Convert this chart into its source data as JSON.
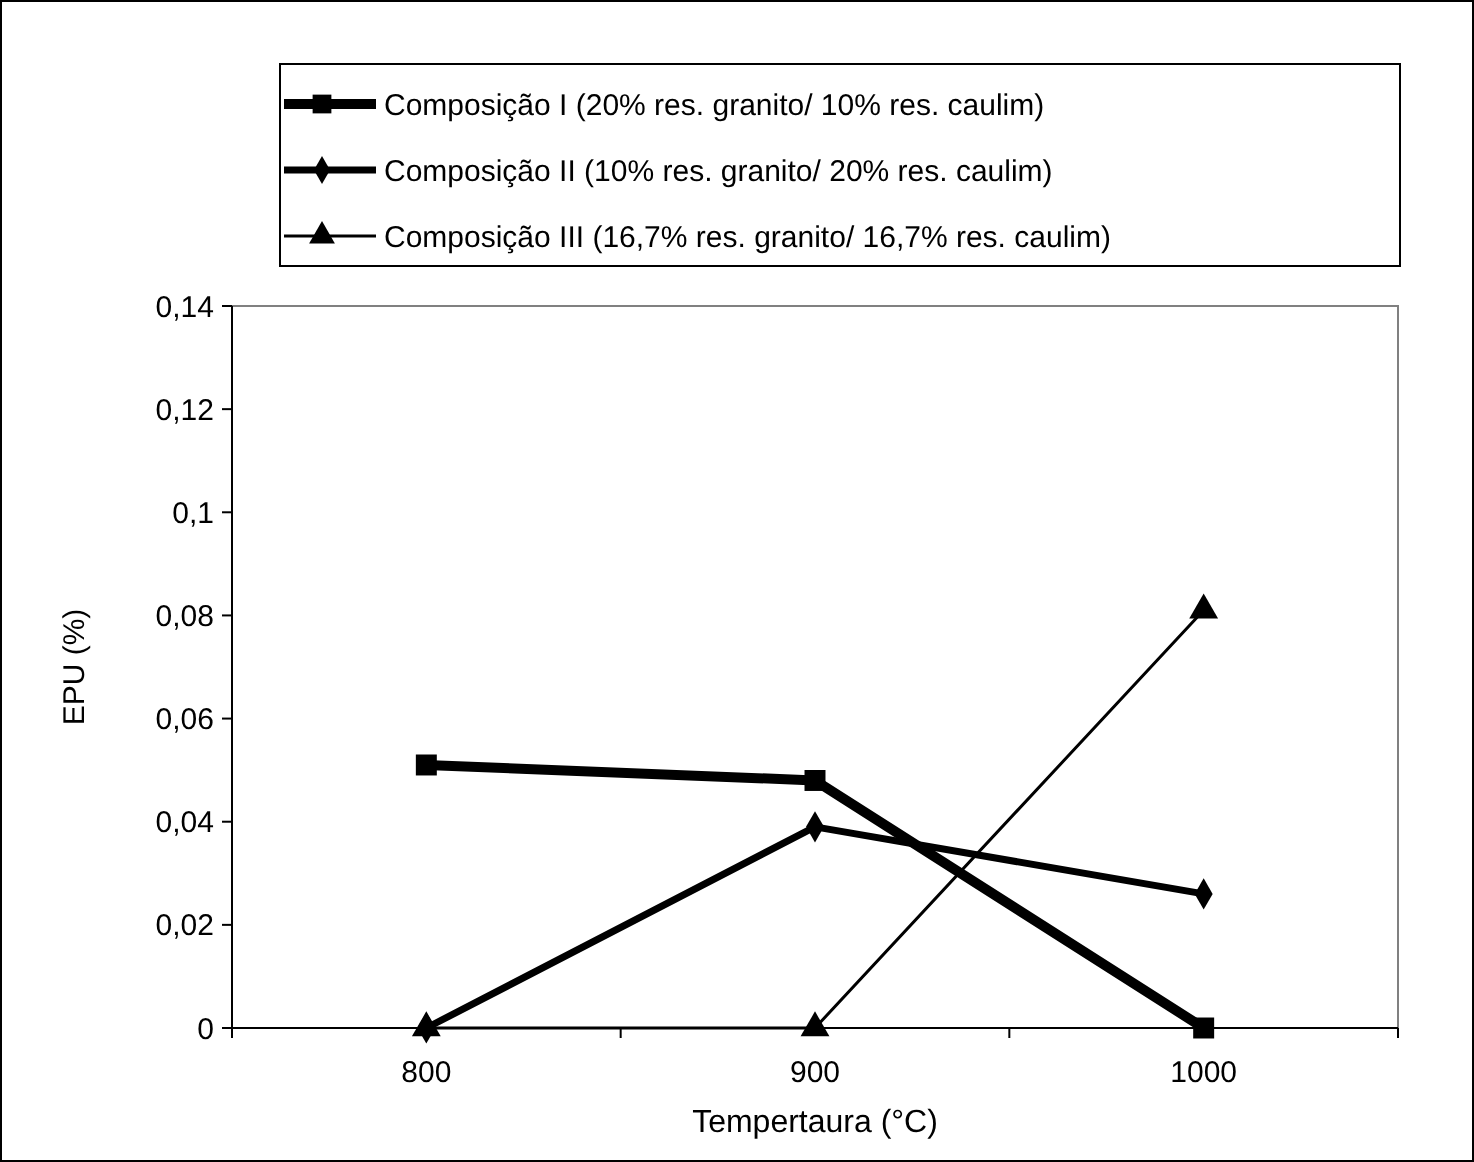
{
  "chart_data": {
    "type": "line",
    "xlabel": "Tempertaura (°C)",
    "ylabel": "EPU (%)",
    "categories": [
      "800",
      "900",
      "1000"
    ],
    "series": [
      {
        "name": "Composição I (20% res. granito/ 10% res. caulim)",
        "color": "#000000",
        "marker": "square",
        "values": [
          0.051,
          0.048,
          0
        ]
      },
      {
        "name": "Composição II (10% res. granito/ 20% res. caulim)",
        "color": "#000000",
        "marker": "diamond",
        "values": [
          0,
          0.039,
          0.026
        ]
      },
      {
        "name": "Composição III (16,7% res. granito/ 16,7% res. caulim)",
        "color": "#000000",
        "marker": "triangle",
        "values": [
          0,
          0,
          0.081
        ]
      }
    ],
    "ylim": [
      0,
      0.14
    ],
    "yticks": [
      0,
      {
        "value": 0.02,
        "label": "0,02"
      },
      {
        "value": 0.04,
        "label": "0,04"
      },
      {
        "value": 0.06,
        "label": "0,06"
      },
      {
        "value": 0.08,
        "label": "0,08"
      },
      {
        "value": 0.1,
        "label": "0,1"
      },
      {
        "value": 0.12,
        "label": "0,12"
      },
      {
        "value": 0.14,
        "label": "0,14"
      }
    ],
    "grid": false,
    "legend": "top",
    "line_style": "solid"
  }
}
